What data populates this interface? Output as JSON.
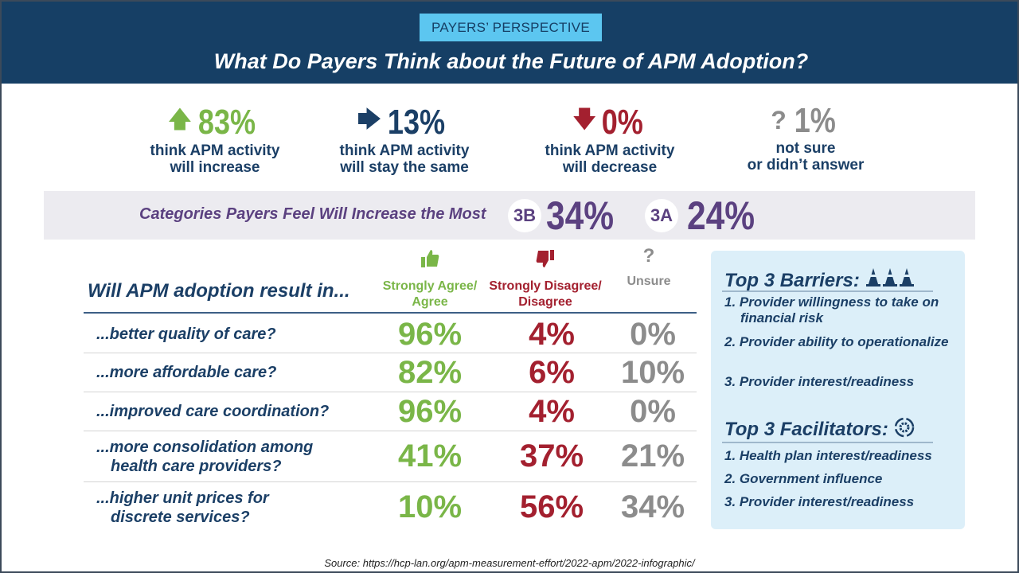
{
  "header": {
    "pill": "PAYERS’ PERSPECTIVE",
    "title": "What Do Payers Think about the Future of APM Adoption?"
  },
  "stats": [
    {
      "icon": "arrow-up-icon",
      "value": "83%",
      "label1": "think APM activity",
      "label2": "will increase",
      "color": "#7ab648"
    },
    {
      "icon": "arrow-right-icon",
      "value": "13%",
      "label1": "think APM activity",
      "label2": "will stay the same",
      "color": "#1b3f66"
    },
    {
      "icon": "arrow-down-icon",
      "value": "0%",
      "label1": "think APM activity",
      "label2": "will decrease",
      "color": "#a3202f"
    },
    {
      "icon": "question-icon",
      "value": "1%",
      "label1": "not sure",
      "label2": "or didn’t answer",
      "color": "#8c8c8c"
    }
  ],
  "categories": {
    "label": "Categories Payers Feel Will Increase the Most",
    "items": [
      {
        "badge": "3B",
        "value": "34%"
      },
      {
        "badge": "3A",
        "value": "24%"
      }
    ]
  },
  "table": {
    "question": "Will APM adoption result in...",
    "columns": [
      {
        "icon": "thumbs-up-icon",
        "label1": "Strongly Agree/",
        "label2": "Agree"
      },
      {
        "icon": "thumbs-down-icon",
        "label1": "Strongly Disagree/",
        "label2": "Disagree"
      },
      {
        "icon": "question-icon",
        "label1": "Unsure",
        "label2": ""
      }
    ],
    "rows": [
      {
        "q1": "...better quality of care?",
        "q2": "",
        "agree": "96%",
        "disagree": "4%",
        "unsure": "0%"
      },
      {
        "q1": "...more affordable care?",
        "q2": "",
        "agree": "82%",
        "disagree": "6%",
        "unsure": "10%"
      },
      {
        "q1": "...improved care coordination?",
        "q2": "",
        "agree": "96%",
        "disagree": "4%",
        "unsure": "0%"
      },
      {
        "q1": "...more consolidation among",
        "q2": "health care providers?",
        "agree": "41%",
        "disagree": "37%",
        "unsure": "21%"
      },
      {
        "q1": "...higher unit prices for",
        "q2": "discrete services?",
        "agree": "10%",
        "disagree": "56%",
        "unsure": "34%"
      }
    ]
  },
  "panel": {
    "barriers_title": "Top 3 Barriers:",
    "barriers": [
      "1. Provider willingness to take on financial risk",
      "2. Provider ability to operationalize",
      "3. Provider interest/readiness"
    ],
    "facilitators_title": "Top 3 Facilitators:",
    "facilitators": [
      "1. Health plan interest/readiness",
      "2. Government influence",
      "3. Provider interest/readiness"
    ]
  },
  "source": "Source: https://hcp-lan.org/apm-measurement-effort/2022-apm/2022-infographic/",
  "colors": {
    "navy": "#163f65",
    "green": "#7ab648",
    "red": "#a3202f",
    "gray": "#8c8c8c",
    "purple": "#5b4180",
    "light_blue": "#5cc6f0"
  }
}
